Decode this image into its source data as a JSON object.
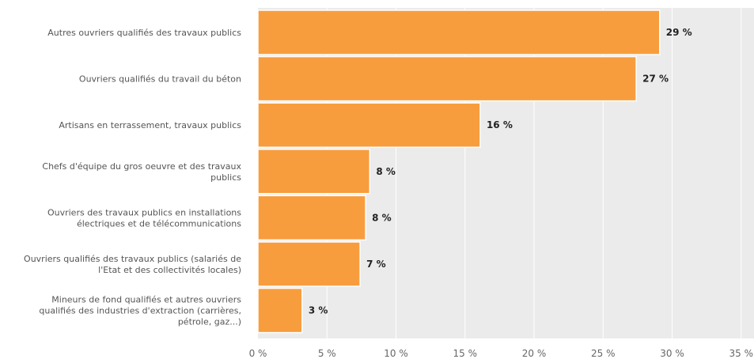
{
  "chart_data": {
    "type": "bar",
    "orientation": "horizontal",
    "categories": [
      [
        "Autres ouvriers qualifiés des travaux publics"
      ],
      [
        "Ouvriers qualifiés du travail du béton"
      ],
      [
        "Artisans en terrassement, travaux publics"
      ],
      [
        "Chefs d'équipe du gros oeuvre et des travaux",
        "publics"
      ],
      [
        "Ouvriers des travaux publics en installations",
        "électriques et de télécommunications"
      ],
      [
        "Ouvriers qualifiés des travaux publics (salariés de",
        "l'Etat et des collectivités locales)"
      ],
      [
        "Mineurs de fond qualifiés et autres ouvriers",
        "qualifiés des industries d'extraction (carrières,",
        "pétrole, gaz...)"
      ]
    ],
    "values": [
      29.1,
      27.4,
      16.1,
      8.1,
      7.8,
      7.4,
      3.2
    ],
    "data_labels": [
      "29 %",
      "27 %",
      "16 %",
      "8 %",
      "8 %",
      "7 %",
      "3 %"
    ],
    "xlim": [
      0,
      35
    ],
    "ticks": [
      0,
      5,
      10,
      15,
      20,
      25,
      30,
      35
    ],
    "tick_labels": [
      "0 %",
      "5 %",
      "10 %",
      "15 %",
      "20 %",
      "25 %",
      "30 %",
      "35 %"
    ],
    "grid": true,
    "bar_color": "#f89d3d",
    "plot_background": "#ebebeb",
    "grid_color": "#ffffff"
  }
}
